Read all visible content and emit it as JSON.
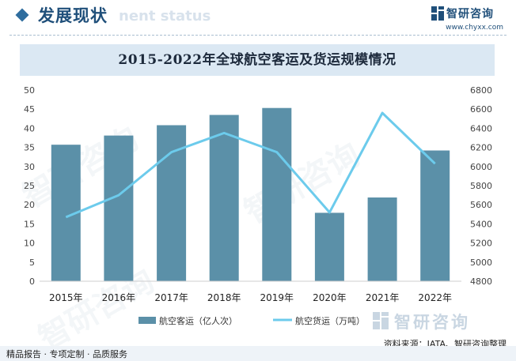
{
  "header": {
    "title": "发展现状",
    "ghost_text": "nent status",
    "brand_name": "智研咨询",
    "brand_url": "www.chyxx.com"
  },
  "chart_data": {
    "type": "bar",
    "title": "2015-2022年全球航空客运及货运规模情况",
    "categories": [
      "2015年",
      "2016年",
      "2017年",
      "2018年",
      "2019年",
      "2020年",
      "2021年",
      "2022年"
    ],
    "series": [
      {
        "name": "航空客运（亿人次）",
        "type": "bar",
        "axis": "left",
        "values": [
          35.7,
          38.1,
          40.8,
          43.5,
          45.3,
          17.9,
          21.9,
          34.2
        ],
        "color": "#5b90a8"
      },
      {
        "name": "航空货运（万吨）",
        "type": "line",
        "axis": "right",
        "values": [
          5470,
          5700,
          6150,
          6350,
          6150,
          5520,
          6560,
          6030
        ],
        "color": "#6ccbec"
      }
    ],
    "y_left": {
      "min": 0,
      "max": 50,
      "step": 5,
      "ticks": [
        "0",
        "5",
        "10",
        "15",
        "20",
        "25",
        "30",
        "35",
        "40",
        "45",
        "50"
      ]
    },
    "y_right": {
      "min": 4800,
      "max": 6800,
      "step": 200,
      "ticks": [
        "4800",
        "5000",
        "5200",
        "5400",
        "5600",
        "5800",
        "6000",
        "6200",
        "6400",
        "6600",
        "6800"
      ]
    },
    "grid": false,
    "legend_position": "bottom"
  },
  "legend": {
    "bar_label": "航空客运（亿人次）",
    "line_label": "航空货运（万吨）"
  },
  "footer": {
    "source": "资料来源：IATA、智研咨询整理",
    "slogan": "精品报告 · 专项定制 · 品质服务",
    "logo_name": "智研咨询"
  },
  "watermark_text": "智研咨询",
  "colors": {
    "accent": "#1f4f7a",
    "bar": "#5b90a8",
    "line": "#6ccbec",
    "title_band": "#dbe8f3"
  }
}
